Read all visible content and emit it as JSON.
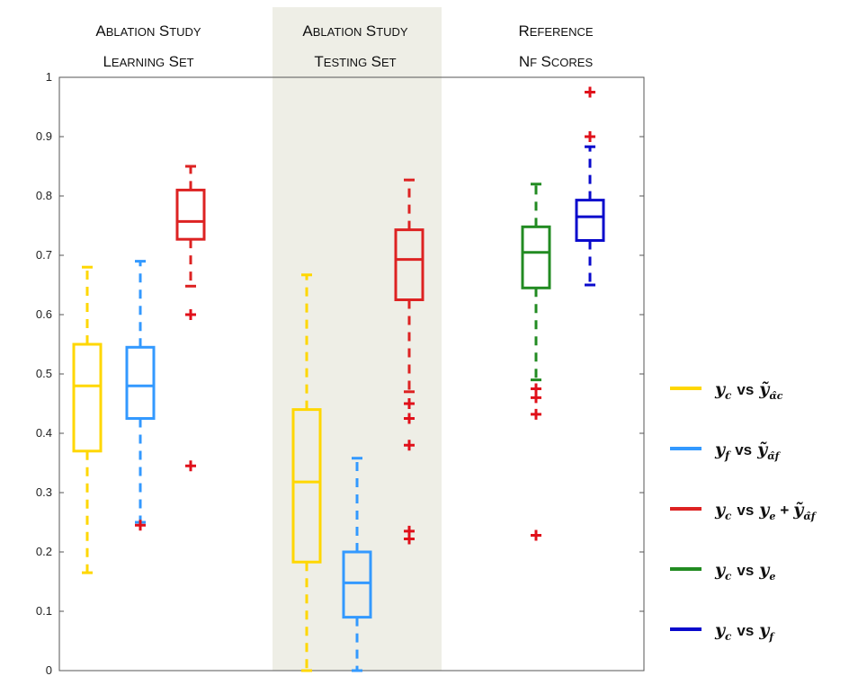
{
  "chart_data": {
    "type": "box",
    "ylim": [
      0,
      1
    ],
    "y_ticks": [
      "0",
      "0.1",
      "0.2",
      "0.3",
      "0.4",
      "0.5",
      "0.6",
      "0.7",
      "0.8",
      "0.9",
      "1"
    ],
    "grid": false,
    "legend_position": "right",
    "groups": [
      {
        "title_line1": "Ablation study",
        "title_line2": "Learning set",
        "highlighted": false
      },
      {
        "title_line1": "Ablation study",
        "title_line2": "Testing set",
        "highlighted": true
      },
      {
        "title_line1": "Reference",
        "title_line2": "NF scores",
        "highlighted": false
      }
    ],
    "series": [
      {
        "key": "yc_vs_yhat_ac",
        "color": "#FFD700"
      },
      {
        "key": "yf_vs_yhat_af",
        "color": "#3399FF"
      },
      {
        "key": "yc_vs_ye_plus_yhat_af",
        "color": "#DD2222"
      },
      {
        "key": "yc_vs_ye",
        "color": "#228B22"
      },
      {
        "key": "yc_vs_yf",
        "color": "#0A0ACC"
      }
    ],
    "legend": [
      {
        "series": "yc_vs_yhat_ac",
        "label": "y_c vs ỹ_(α̂_c)",
        "parts": {
          "a": "y",
          "a_sub": "c",
          "vs": "vs",
          "b": "ỹ",
          "b_sub": "α̂c",
          "plus": "",
          "c": "",
          "c_sub": ""
        }
      },
      {
        "series": "yf_vs_yhat_af",
        "label": "y_f vs ỹ_(α̂_f)",
        "parts": {
          "a": "y",
          "a_sub": "f",
          "vs": "vs",
          "b": "ỹ",
          "b_sub": "α̂f",
          "plus": "",
          "c": "",
          "c_sub": ""
        }
      },
      {
        "series": "yc_vs_ye_plus_yhat_af",
        "label": "y_c vs y_e + ỹ_(α̂_f)",
        "parts": {
          "a": "y",
          "a_sub": "c",
          "vs": "vs",
          "b": "y",
          "b_sub": "e",
          "plus": "+",
          "c": "ỹ",
          "c_sub": "α̂f"
        }
      },
      {
        "series": "yc_vs_ye",
        "label": "y_c vs y_e",
        "parts": {
          "a": "y",
          "a_sub": "c",
          "vs": "vs",
          "b": "y",
          "b_sub": "e",
          "plus": "",
          "c": "",
          "c_sub": ""
        }
      },
      {
        "series": "yc_vs_yf",
        "label": "y_c vs y_f",
        "parts": {
          "a": "y",
          "a_sub": "c",
          "vs": "vs",
          "b": "y",
          "b_sub": "f",
          "plus": "",
          "c": "",
          "c_sub": ""
        }
      }
    ],
    "boxes": [
      {
        "group": 0,
        "series": "yc_vs_yhat_ac",
        "q1": 0.37,
        "median": 0.48,
        "q3": 0.55,
        "whisker_low": 0.165,
        "whisker_high": 0.68,
        "outliers": []
      },
      {
        "group": 0,
        "series": "yf_vs_yhat_af",
        "q1": 0.425,
        "median": 0.48,
        "q3": 0.545,
        "whisker_low": 0.25,
        "whisker_high": 0.69,
        "outliers": [
          0.245
        ]
      },
      {
        "group": 0,
        "series": "yc_vs_ye_plus_yhat_af",
        "q1": 0.727,
        "median": 0.757,
        "q3": 0.81,
        "whisker_low": 0.648,
        "whisker_high": 0.85,
        "outliers": [
          0.6,
          0.345
        ]
      },
      {
        "group": 1,
        "series": "yc_vs_yhat_ac",
        "q1": 0.183,
        "median": 0.318,
        "q3": 0.44,
        "whisker_low": 0.0,
        "whisker_high": 0.667,
        "outliers": []
      },
      {
        "group": 1,
        "series": "yf_vs_yhat_af",
        "q1": 0.09,
        "median": 0.148,
        "q3": 0.2,
        "whisker_low": 0.0,
        "whisker_high": 0.358,
        "outliers": []
      },
      {
        "group": 1,
        "series": "yc_vs_ye_plus_yhat_af",
        "q1": 0.625,
        "median": 0.693,
        "q3": 0.743,
        "whisker_low": 0.47,
        "whisker_high": 0.827,
        "outliers": [
          0.45,
          0.425,
          0.38,
          0.235,
          0.222
        ]
      },
      {
        "group": 2,
        "series": "yc_vs_ye",
        "q1": 0.645,
        "median": 0.705,
        "q3": 0.748,
        "whisker_low": 0.49,
        "whisker_high": 0.82,
        "outliers": [
          0.475,
          0.46,
          0.432,
          0.228
        ]
      },
      {
        "group": 2,
        "series": "yc_vs_yf",
        "q1": 0.725,
        "median": 0.765,
        "q3": 0.793,
        "whisker_low": 0.65,
        "whisker_high": 0.883,
        "outliers": [
          0.9,
          0.975
        ]
      }
    ]
  }
}
